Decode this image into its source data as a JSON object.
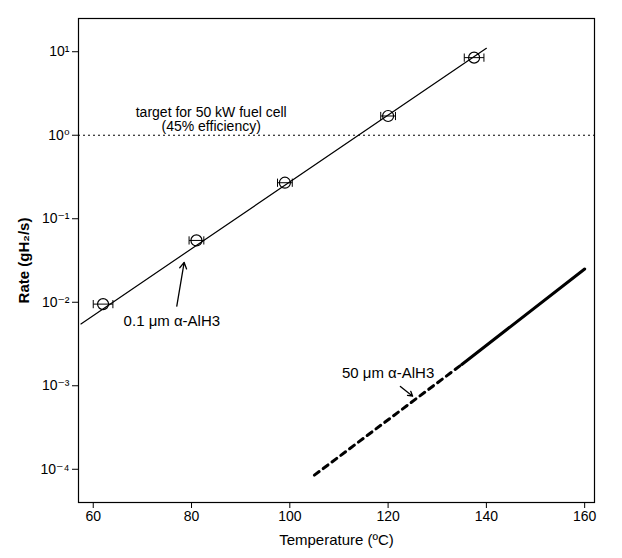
{
  "chart_data": {
    "type": "scatter",
    "log": "y",
    "xlabel": "Temperature (ºC)",
    "ylabel": "Rate (gH₂/s)",
    "xlim": [
      57,
      162
    ],
    "ylim": [
      4e-05,
      25
    ],
    "xticks": [
      60,
      80,
      100,
      120,
      140,
      160
    ],
    "yticks": [
      {
        "value": 0.0001,
        "label": "10⁻⁴"
      },
      {
        "value": 0.001,
        "label": "10⁻³"
      },
      {
        "value": 0.01,
        "label": "10⁻²"
      },
      {
        "value": 0.1,
        "label": "10⁻¹"
      },
      {
        "value": 1,
        "label": "10⁰"
      },
      {
        "value": 10,
        "label": "10¹"
      }
    ],
    "reference": {
      "value": 1,
      "x": 84,
      "text": [
        "target for 50 kW fuel cell",
        "(45% efficiency)"
      ],
      "line_style": "dotted"
    },
    "series": [
      {
        "name": "0.1 μm α-AlH3",
        "type": "scatter",
        "marker": "circle",
        "color": "#000000",
        "x": [
          62,
          81,
          99,
          120,
          137.5
        ],
        "values": [
          0.0095,
          0.055,
          0.27,
          1.7,
          8.5
        ],
        "xerr": [
          2,
          1.5,
          1.5,
          1.5,
          2
        ],
        "fit": {
          "x": [
            57.5,
            140
          ],
          "values": [
            0.0055,
            11
          ]
        },
        "annotation": {
          "x": 76,
          "y": 0.006,
          "arrow_x": [
            77,
            78.5
          ],
          "arrow_y": [
            0.009,
            0.03
          ]
        }
      },
      {
        "name": "50 μm α-AlH3",
        "type": "line",
        "color": "#000000",
        "segments": [
          {
            "x": [
              105,
              135
            ],
            "values": [
              8.5e-05,
              0.0018
            ],
            "line_style": "dashed"
          },
          {
            "x": [
              135,
              160
            ],
            "values": [
              0.0018,
              0.025
            ],
            "line_style": "solid"
          }
        ],
        "annotation": {
          "x": 120,
          "y": 0.0014,
          "arrow_x": [
            122.5,
            125
          ],
          "arrow_y": [
            0.00098,
            0.00075
          ]
        }
      }
    ]
  }
}
